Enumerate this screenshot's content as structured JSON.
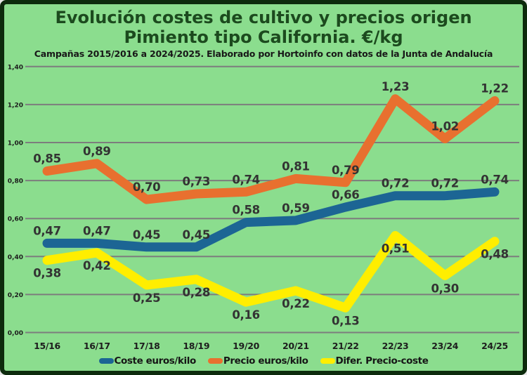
{
  "header": {
    "title_line1": "Evolución costes de cultivo y precios origen",
    "title_line2": "Pimiento tipo California. €/kg",
    "subtitle": "Campañas 2015/2016 a 2024/2025. Elaborado por Hortoinfo con datos de la Junta de Andalucía"
  },
  "colors": {
    "background": "#8bdd8e",
    "frame_border": "#0d2b0d",
    "title": "#1c4a1e",
    "gridline": "#7d7d7d",
    "axis_text": "#1d1d1d",
    "data_label": "#333333",
    "cost_line": "#1c6594",
    "price_line": "#e8702f",
    "diff_line": "#ffee00"
  },
  "chart_data": {
    "type": "line",
    "title": "Evolución costes de cultivo y precios origen Pimiento tipo California. €/kg",
    "subtitle": "Campañas 2015/2016 a 2024/2025. Elaborado por Hortoinfo con datos de la Junta de Andalucía",
    "unit": "€/kg",
    "categories": [
      "15/16",
      "16/17",
      "17/18",
      "18/19",
      "19/20",
      "20/21",
      "21/22",
      "22/23",
      "23/24",
      "24/25"
    ],
    "series": [
      {
        "name": "Coste euros/kilo",
        "color": "#1c6594",
        "label_side": "above",
        "values": [
          0.47,
          0.47,
          0.45,
          0.45,
          0.58,
          0.59,
          0.66,
          0.72,
          0.72,
          0.74
        ]
      },
      {
        "name": "Precio euros/kilo",
        "color": "#e8702f",
        "label_side": "above",
        "values": [
          0.85,
          0.89,
          0.7,
          0.73,
          0.74,
          0.81,
          0.79,
          1.23,
          1.02,
          1.22
        ]
      },
      {
        "name": "Difer. Precio-coste",
        "color": "#ffee00",
        "label_side": "below",
        "values": [
          0.38,
          0.42,
          0.25,
          0.28,
          0.16,
          0.22,
          0.13,
          0.51,
          0.3,
          0.48
        ]
      }
    ],
    "ylim": [
      0,
      1.4
    ],
    "ytick_step": 0.2,
    "decimal_separator": ",",
    "grid": true,
    "legend_position": "bottom",
    "xlabel": "",
    "ylabel": ""
  }
}
